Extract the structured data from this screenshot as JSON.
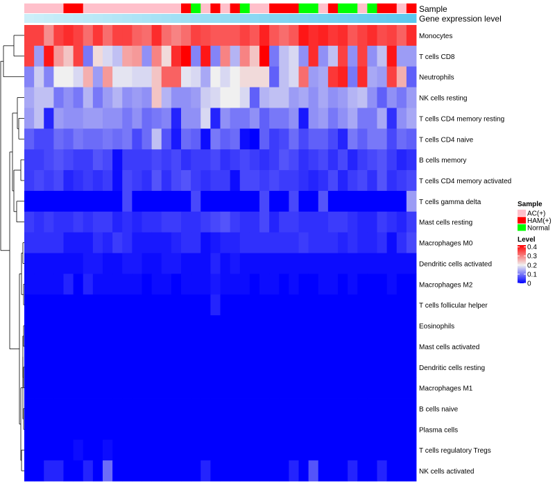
{
  "chart_data": {
    "type": "heatmap",
    "title": "",
    "annotation_tracks": [
      "Sample",
      "Gene expression level"
    ],
    "sample_groups": [
      "AC",
      "AC",
      "AC",
      "AC",
      "HAM",
      "HAM",
      "AC",
      "AC",
      "AC",
      "AC",
      "AC",
      "AC",
      "AC",
      "AC",
      "AC",
      "AC",
      "HAM",
      "Normal",
      "AC",
      "HAM",
      "AC",
      "HAM",
      "Normal",
      "AC",
      "AC",
      "HAM",
      "HAM",
      "HAM",
      "Normal",
      "Normal",
      "AC",
      "HAM",
      "Normal",
      "Normal",
      "AC",
      "Normal",
      "HAM",
      "HAM",
      "AC",
      "HAM"
    ],
    "rows": [
      {
        "label": "Monocytes",
        "values": [
          0.36,
          0.36,
          0.29,
          0.36,
          0.38,
          0.36,
          0.32,
          0.37,
          0.32,
          0.36,
          0.36,
          0.33,
          0.32,
          0.38,
          0.32,
          0.3,
          0.32,
          0.36,
          0.35,
          0.34,
          0.34,
          0.34,
          0.36,
          0.34,
          0.39,
          0.34,
          0.32,
          0.34,
          0.4,
          0.38,
          0.39,
          0.37,
          0.38,
          0.34,
          0.36,
          0.38,
          0.35,
          0.36,
          0.33,
          0.38
        ]
      },
      {
        "label": "T cells CD8",
        "values": [
          0.36,
          0.13,
          0.4,
          0.28,
          0.24,
          0.36,
          0.1,
          0.22,
          0.18,
          0.16,
          0.27,
          0.28,
          0.12,
          0.3,
          0.22,
          0.38,
          0.42,
          0.11,
          0.4,
          0.11,
          0.3,
          0.15,
          0.3,
          0.24,
          0.42,
          0.1,
          0.16,
          0.18,
          0.12,
          0.38,
          0.12,
          0.16,
          0.36,
          0.12,
          0.36,
          0.12,
          0.16,
          0.4,
          0.13,
          0.13
        ]
      },
      {
        "label": "Neutrophils",
        "values": [
          0.11,
          0.17,
          0.11,
          0.2,
          0.2,
          0.18,
          0.26,
          0.13,
          0.28,
          0.19,
          0.19,
          0.18,
          0.18,
          0.24,
          0.33,
          0.33,
          0.19,
          0.18,
          0.14,
          0.2,
          0.18,
          0.2,
          0.22,
          0.22,
          0.22,
          0.08,
          0.16,
          0.18,
          0.32,
          0.13,
          0.14,
          0.37,
          0.39,
          0.1,
          0.38,
          0.14,
          0.13,
          0.36,
          0.26,
          0.08
        ]
      },
      {
        "label": "NK cells resting",
        "values": [
          0.14,
          0.16,
          0.16,
          0.1,
          0.12,
          0.1,
          0.15,
          0.1,
          0.13,
          0.15,
          0.12,
          0.13,
          0.12,
          0.24,
          0.15,
          0.12,
          0.12,
          0.13,
          0.17,
          0.18,
          0.2,
          0.2,
          0.18,
          0.08,
          0.15,
          0.16,
          0.16,
          0.13,
          0.14,
          0.12,
          0.14,
          0.12,
          0.13,
          0.15,
          0.16,
          0.12,
          0.08,
          0.12,
          0.1,
          0.13
        ]
      },
      {
        "label": "T cells CD4 memory resting",
        "values": [
          0.13,
          0.16,
          0.03,
          0.13,
          0.12,
          0.12,
          0.13,
          0.13,
          0.12,
          0.12,
          0.1,
          0.12,
          0.09,
          0.1,
          0.11,
          0.03,
          0.12,
          0.12,
          0.18,
          0.03,
          0.12,
          0.1,
          0.1,
          0.12,
          0.08,
          0.1,
          0.1,
          0.12,
          0.02,
          0.12,
          0.13,
          0.1,
          0.12,
          0.14,
          0.1,
          0.1,
          0.14,
          0.04,
          0.12,
          0.14
        ]
      },
      {
        "label": "T cells CD4 naive",
        "values": [
          0.08,
          0.06,
          0.06,
          0.09,
          0.08,
          0.1,
          0.09,
          0.09,
          0.1,
          0.09,
          0.1,
          0.06,
          0.09,
          0.16,
          0.07,
          0.02,
          0.09,
          0.08,
          0.01,
          0.1,
          0.08,
          0.09,
          0.01,
          0.0,
          0.08,
          0.05,
          0.06,
          0.09,
          0.06,
          0.08,
          0.08,
          0.06,
          0.03,
          0.1,
          0.08,
          0.1,
          0.1,
          0.06,
          0.09,
          0.08
        ]
      },
      {
        "label": "B cells memory",
        "values": [
          0.05,
          0.05,
          0.06,
          0.07,
          0.06,
          0.05,
          0.05,
          0.07,
          0.06,
          0.01,
          0.05,
          0.05,
          0.05,
          0.06,
          0.05,
          0.06,
          0.04,
          0.05,
          0.05,
          0.06,
          0.04,
          0.05,
          0.06,
          0.05,
          0.04,
          0.05,
          0.07,
          0.06,
          0.04,
          0.05,
          0.06,
          0.04,
          0.06,
          0.03,
          0.05,
          0.06,
          0.07,
          0.05,
          0.03,
          0.04
        ]
      },
      {
        "label": "T cells CD4 memory activated",
        "values": [
          0.05,
          0.06,
          0.05,
          0.06,
          0.03,
          0.04,
          0.05,
          0.04,
          0.05,
          0.01,
          0.06,
          0.05,
          0.04,
          0.07,
          0.04,
          0.06,
          0.07,
          0.05,
          0.04,
          0.05,
          0.05,
          0.01,
          0.06,
          0.06,
          0.05,
          0.06,
          0.05,
          0.05,
          0.04,
          0.03,
          0.04,
          0.06,
          0.03,
          0.05,
          0.06,
          0.04,
          0.07,
          0.04,
          0.05,
          0.06
        ]
      },
      {
        "label": "T cells gamma delta",
        "values": [
          0.0,
          0.0,
          0.0,
          0.0,
          0.0,
          0.0,
          0.0,
          0.0,
          0.0,
          0.0,
          0.06,
          0.0,
          0.0,
          0.0,
          0.0,
          0.0,
          0.0,
          0.06,
          0.0,
          0.0,
          0.0,
          0.0,
          0.0,
          0.0,
          0.06,
          0.0,
          0.0,
          0.06,
          0.0,
          0.0,
          0.07,
          0.0,
          0.0,
          0.0,
          0.0,
          0.0,
          0.0,
          0.0,
          0.0,
          0.13
        ]
      },
      {
        "label": "Mast cells resting",
        "values": [
          0.05,
          0.04,
          0.05,
          0.04,
          0.04,
          0.05,
          0.04,
          0.05,
          0.05,
          0.03,
          0.04,
          0.03,
          0.04,
          0.04,
          0.05,
          0.05,
          0.04,
          0.04,
          0.05,
          0.06,
          0.07,
          0.05,
          0.04,
          0.04,
          0.06,
          0.03,
          0.05,
          0.05,
          0.04,
          0.04,
          0.04,
          0.05,
          0.05,
          0.04,
          0.03,
          0.03,
          0.05,
          0.04,
          0.03,
          0.05
        ]
      },
      {
        "label": "Macrophages M0",
        "values": [
          0.04,
          0.04,
          0.04,
          0.04,
          0.02,
          0.02,
          0.02,
          0.04,
          0.03,
          0.05,
          0.04,
          0.02,
          0.02,
          0.02,
          0.02,
          0.03,
          0.04,
          0.04,
          0.01,
          0.02,
          0.03,
          0.03,
          0.04,
          0.04,
          0.04,
          0.04,
          0.04,
          0.04,
          0.05,
          0.04,
          0.04,
          0.04,
          0.03,
          0.04,
          0.03,
          0.03,
          0.04,
          0.01,
          0.04,
          0.06
        ]
      },
      {
        "label": "Dendritic cells activated",
        "values": [
          0.01,
          0.01,
          0.01,
          0.01,
          0.01,
          0.01,
          0.02,
          0.02,
          0.01,
          0.01,
          0.02,
          0.02,
          0.01,
          0.01,
          0.02,
          0.02,
          0.01,
          0.01,
          0.01,
          0.03,
          0.01,
          0.02,
          0.01,
          0.01,
          0.01,
          0.01,
          0.01,
          0.01,
          0.01,
          0.01,
          0.01,
          0.01,
          0.01,
          0.01,
          0.01,
          0.01,
          0.01,
          0.01,
          0.01,
          0.01
        ]
      },
      {
        "label": "Macrophages M2",
        "values": [
          0.01,
          0.01,
          0.01,
          0.01,
          0.03,
          0.0,
          0.03,
          0.01,
          0.01,
          0.01,
          0.01,
          0.01,
          0.0,
          0.01,
          0.01,
          0.0,
          0.01,
          0.01,
          0.01,
          0.02,
          0.01,
          0.01,
          0.01,
          0.0,
          0.01,
          0.01,
          0.0,
          0.01,
          0.0,
          0.0,
          0.01,
          0.01,
          0.0,
          0.01,
          0.0,
          0.0,
          0.0,
          0.01,
          0.0,
          0.0
        ]
      },
      {
        "label": "T cells follicular helper",
        "values": [
          0.0,
          0.0,
          0.0,
          0.0,
          0.0,
          0.0,
          0.0,
          0.0,
          0.0,
          0.0,
          0.0,
          0.0,
          0.0,
          0.0,
          0.0,
          0.0,
          0.0,
          0.0,
          0.0,
          0.03,
          0.0,
          0.0,
          0.0,
          0.0,
          0.0,
          0.0,
          0.0,
          0.0,
          0.0,
          0.0,
          0.0,
          0.0,
          0.0,
          0.0,
          0.0,
          0.0,
          0.0,
          0.0,
          0.0,
          0.0
        ]
      },
      {
        "label": "Eosinophils",
        "values": [
          0,
          0,
          0,
          0,
          0,
          0,
          0,
          0,
          0,
          0,
          0,
          0,
          0,
          0,
          0,
          0,
          0,
          0,
          0,
          0,
          0,
          0,
          0,
          0,
          0,
          0,
          0,
          0,
          0,
          0,
          0,
          0,
          0,
          0,
          0,
          0,
          0,
          0,
          0,
          0
        ]
      },
      {
        "label": "Mast cells activated",
        "values": [
          0,
          0,
          0,
          0,
          0,
          0,
          0,
          0,
          0,
          0,
          0,
          0,
          0,
          0,
          0,
          0,
          0,
          0,
          0,
          0,
          0,
          0,
          0,
          0,
          0,
          0,
          0,
          0,
          0,
          0,
          0,
          0,
          0,
          0,
          0,
          0,
          0,
          0,
          0,
          0
        ]
      },
      {
        "label": "Dendritic cells resting",
        "values": [
          0,
          0,
          0,
          0,
          0,
          0,
          0,
          0,
          0,
          0,
          0,
          0,
          0,
          0,
          0,
          0,
          0,
          0,
          0,
          0,
          0,
          0,
          0,
          0,
          0,
          0,
          0,
          0,
          0,
          0,
          0,
          0,
          0,
          0,
          0,
          0,
          0,
          0,
          0,
          0
        ]
      },
      {
        "label": "Macrophages M1",
        "values": [
          0,
          0,
          0,
          0,
          0,
          0,
          0,
          0,
          0,
          0,
          0,
          0,
          0,
          0,
          0,
          0,
          0,
          0,
          0,
          0,
          0,
          0,
          0,
          0,
          0,
          0,
          0,
          0,
          0,
          0,
          0,
          0,
          0,
          0,
          0,
          0,
          0,
          0,
          0,
          0
        ]
      },
      {
        "label": "B cells naive",
        "values": [
          0,
          0,
          0,
          0,
          0,
          0,
          0,
          0,
          0,
          0,
          0,
          0,
          0,
          0,
          0,
          0,
          0,
          0,
          0,
          0,
          0,
          0,
          0,
          0,
          0,
          0,
          0,
          0,
          0,
          0,
          0,
          0,
          0,
          0,
          0,
          0,
          0,
          0,
          0,
          0
        ]
      },
      {
        "label": "Plasma cells",
        "values": [
          0,
          0,
          0,
          0,
          0,
          0,
          0,
          0,
          0,
          0,
          0,
          0,
          0,
          0,
          0,
          0,
          0,
          0,
          0,
          0,
          0,
          0,
          0,
          0,
          0,
          0,
          0,
          0,
          0,
          0,
          0,
          0,
          0,
          0,
          0,
          0,
          0,
          0,
          0,
          0
        ]
      },
      {
        "label": "T cells regulatory  Tregs",
        "values": [
          0.0,
          0.0,
          0.0,
          0.0,
          0.0,
          0.01,
          0.0,
          0.0,
          0.01,
          0.0,
          0.0,
          0.0,
          0.0,
          0.0,
          0.0,
          0.0,
          0.0,
          0.0,
          0.0,
          0.0,
          0.0,
          0.0,
          0.0,
          0.0,
          0.0,
          0.0,
          0.0,
          0.0,
          0.0,
          0.0,
          0.0,
          0.0,
          0.0,
          0.0,
          0.0,
          0.0,
          0.0,
          0.0,
          0.0,
          0.0
        ]
      },
      {
        "label": "NK cells activated",
        "values": [
          0.0,
          0.0,
          0.03,
          0.03,
          0.0,
          0.0,
          0.03,
          0.0,
          0.09,
          0.0,
          0.0,
          0.0,
          0.0,
          0.0,
          0.0,
          0.0,
          0.0,
          0.0,
          0.03,
          0.0,
          0.0,
          0.0,
          0.0,
          0.0,
          0.0,
          0.0,
          0.0,
          0.03,
          0.0,
          0.07,
          0.0,
          0.0,
          0.0,
          0.03,
          0.0,
          0.0,
          0.03,
          0.0,
          0.0,
          0.0
        ]
      }
    ],
    "legend": {
      "sample": {
        "title": "Sample",
        "items": [
          {
            "key": "AC",
            "label": "AC(+)",
            "color": "#FFC0CB"
          },
          {
            "key": "HAM",
            "label": "HAM(+)",
            "color": "#FF0000"
          },
          {
            "key": "Normal",
            "label": "Normal",
            "color": "#00FF00"
          }
        ]
      },
      "level": {
        "title": "Level",
        "ticks": [
          0.4,
          0.3,
          0.2,
          0.1,
          0
        ],
        "range": [
          0,
          0.42
        ]
      }
    },
    "colors": {
      "low": "#0000FF",
      "mid": "#F0F0F0",
      "high": "#FF0000",
      "mid_value": 0.2,
      "expression_bar": "#5BC8EE",
      "expression_bar_light": "#CDEFF9"
    }
  }
}
